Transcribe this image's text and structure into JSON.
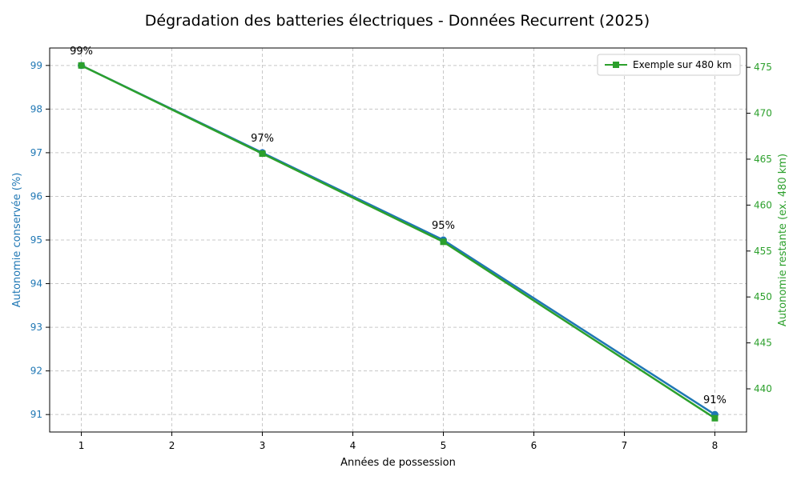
{
  "chart_data": {
    "type": "line",
    "title": "Dégradation des batteries électriques - Données Recurrent (2025)",
    "xlabel": "Années de possession",
    "ylabel_left": "Autonomie conservée (%)",
    "ylabel_right": "Autonomie restante (ex. 480 km)",
    "x": [
      1,
      3,
      5,
      8
    ],
    "x_ticks": [
      1,
      2,
      3,
      4,
      5,
      6,
      7,
      8
    ],
    "xlim": [
      0.65,
      8.35
    ],
    "ylim_left": [
      90.6,
      99.4
    ],
    "y_ticks_left": [
      91,
      92,
      93,
      94,
      95,
      96,
      97,
      98,
      99
    ],
    "ylim_right": [
      435.3,
      477.1
    ],
    "y_ticks_right": [
      440,
      445,
      450,
      455,
      460,
      465,
      470,
      475
    ],
    "grid": true,
    "legend_position": "top-right",
    "series": [
      {
        "axis": "left",
        "values": [
          99,
          97,
          95,
          91
        ],
        "marker": "circle",
        "color": "#1f77b4",
        "data_labels": [
          "99%",
          "97%",
          "95%",
          "91%"
        ]
      },
      {
        "name": "Exemple sur 480 km",
        "axis": "right",
        "values": [
          475.2,
          465.6,
          456,
          436.8
        ],
        "marker": "square",
        "color": "#2ca02c"
      }
    ],
    "colors": {
      "left_axis": "#1f77b4",
      "right_axis": "#2ca02c",
      "grid": "#c8c8c8"
    }
  }
}
